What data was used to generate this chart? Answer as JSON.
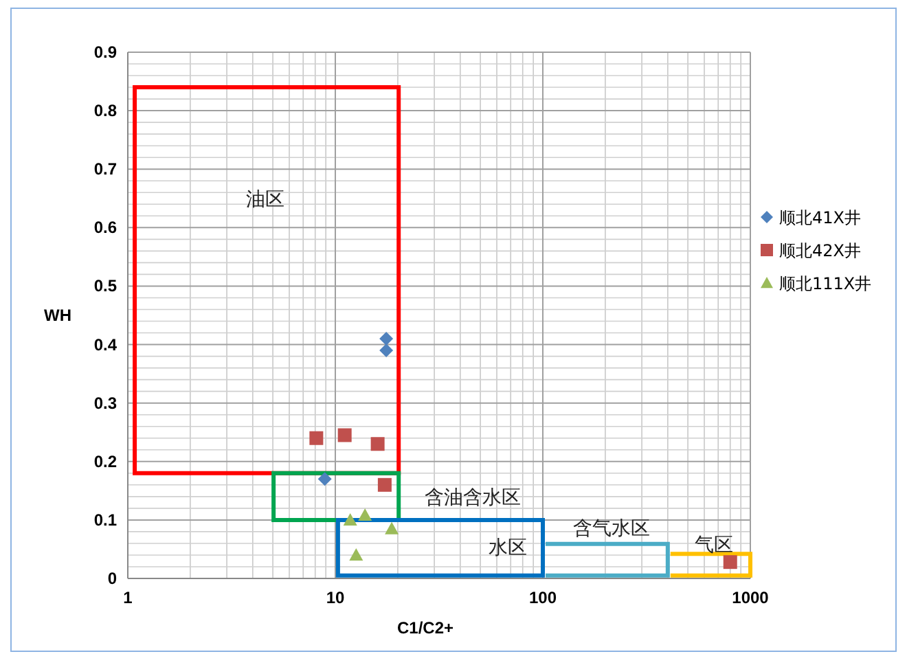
{
  "chart_data": {
    "type": "scatter",
    "xlabel": "C1/C2+",
    "ylabel": "WH",
    "log": "x",
    "xlim": [
      1,
      1000
    ],
    "xticks": [
      1,
      10,
      100,
      1000
    ],
    "ylim": [
      0,
      0.9
    ],
    "yticks": [
      0,
      0.1,
      0.2,
      0.3,
      0.4,
      0.5,
      0.6,
      0.7,
      0.8,
      0.9
    ],
    "grid": true,
    "legend": "right",
    "series": [
      {
        "name": "顺北41X井",
        "color": "#4f81bd",
        "marker": "diamond",
        "x": [
          17.6,
          17.6,
          8.9
        ],
        "values": [
          0.41,
          0.39,
          0.17
        ]
      },
      {
        "name": "顺北42X井",
        "color": "#c0504d",
        "marker": "square",
        "x": [
          8.1,
          11.1,
          16,
          17.3,
          800
        ],
        "values": [
          0.24,
          0.245,
          0.23,
          0.16,
          0.028
        ]
      },
      {
        "name": "顺北111X井",
        "color": "#9bbb59",
        "marker": "triangle",
        "x": [
          11.8,
          13.9,
          18.7,
          12.6
        ],
        "values": [
          0.1,
          0.108,
          0.085,
          0.04
        ]
      }
    ],
    "annotations": [
      "油区",
      "含油含水区",
      "水区",
      "含气水区",
      "气区"
    ]
  }
}
